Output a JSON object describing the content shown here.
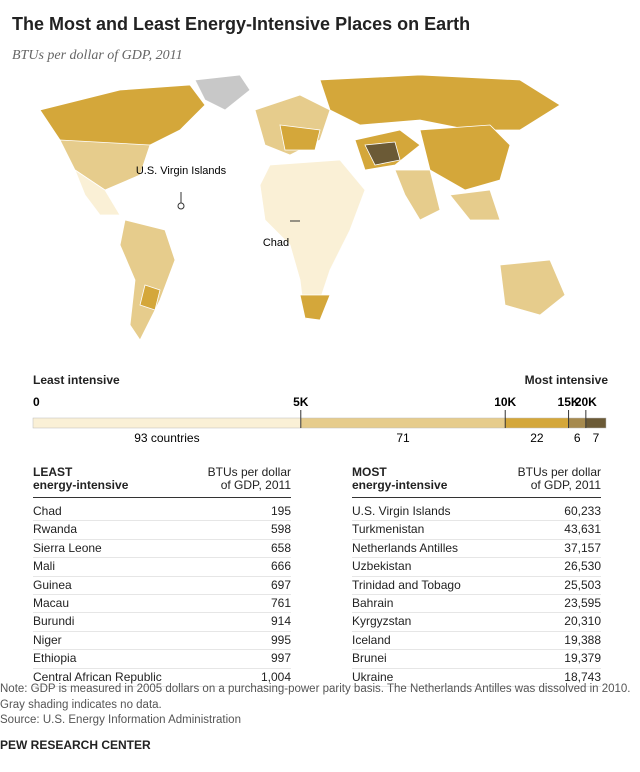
{
  "header": {
    "title": "The Most and Least Energy-Intensive Places on Earth",
    "subtitle": "BTUs per dollar of GDP, 2011"
  },
  "map": {
    "labels": [
      "U.S. Virgin Islands",
      "Chad"
    ]
  },
  "legend": {
    "left_title": "Least intensive",
    "right_title": "Most intensive",
    "boundaries": [
      "0",
      "5K",
      "10K",
      "15K",
      "20K"
    ],
    "segments": [
      {
        "count": 93,
        "count_label": "93 countries",
        "color": "#faf0d6"
      },
      {
        "count": 71,
        "color": "#e6cc8c"
      },
      {
        "count": 22,
        "color": "#d4a73a"
      },
      {
        "count": 6,
        "color": "#a68a4e"
      },
      {
        "count": 7,
        "color": "#6b5a36"
      }
    ]
  },
  "tables": [
    {
      "heading": [
        "LEAST",
        "energy-intensive"
      ],
      "value_heading": [
        "BTUs per dollar",
        "of GDP, 2011"
      ],
      "rows": [
        [
          "Chad",
          "195"
        ],
        [
          "Rwanda",
          "598"
        ],
        [
          "Sierra Leone",
          "658"
        ],
        [
          "Mali",
          "666"
        ],
        [
          "Guinea",
          "697"
        ],
        [
          "Macau",
          "761"
        ],
        [
          "Burundi",
          "914"
        ],
        [
          "Niger",
          "995"
        ],
        [
          "Ethiopia",
          "997"
        ],
        [
          "Central African Republic",
          "1,004"
        ]
      ]
    },
    {
      "heading": [
        "MOST",
        "energy-intensive"
      ],
      "value_heading": [
        "BTUs per dollar",
        "of GDP, 2011"
      ],
      "rows": [
        [
          "U.S. Virgin Islands",
          "60,233"
        ],
        [
          "Turkmenistan",
          "43,631"
        ],
        [
          "Netherlands Antilles",
          "37,157"
        ],
        [
          "Uzbekistan",
          "26,530"
        ],
        [
          "Trinidad and Tobago",
          "25,503"
        ],
        [
          "Bahrain",
          "23,595"
        ],
        [
          "Kyrgyzstan",
          "20,310"
        ],
        [
          "Iceland",
          "19,388"
        ],
        [
          "Brunei",
          "19,379"
        ],
        [
          "Ukraine",
          "18,743"
        ]
      ]
    }
  ],
  "notes": [
    "Note: GDP is measured in 2005 dollars on a purchasing-power parity basis. The Netherlands Antilles was dissolved in 2010.",
    "Gray shading indicates no data.",
    "Source: U.S. Energy Information Administration"
  ],
  "footer": "PEW RESEARCH CENTER"
}
